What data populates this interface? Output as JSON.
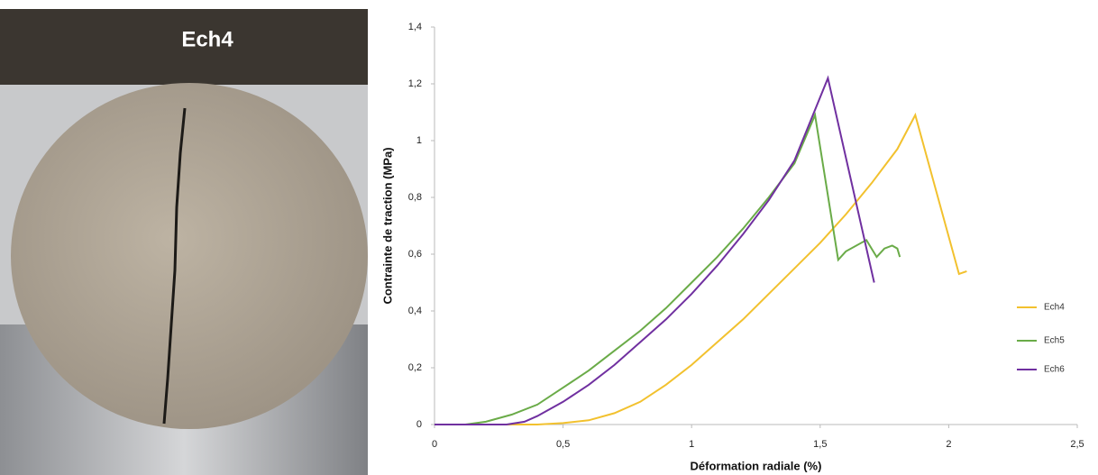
{
  "photo": {
    "label": "Ech4"
  },
  "chart_data": {
    "type": "line",
    "xlabel": "Déformation radiale (%)",
    "ylabel": "Contrainte de traction (MPa)",
    "xlim": [
      0,
      2.5
    ],
    "ylim": [
      0,
      1.4
    ],
    "xticks": [
      0,
      {
        "value": 0.5,
        "label": "0,5"
      },
      1,
      {
        "value": 1.5,
        "label": "1,5"
      },
      2,
      {
        "value": 2.5,
        "label": "2,5"
      }
    ],
    "yticks": [
      0,
      {
        "value": 0.2,
        "label": "0,2"
      },
      {
        "value": 0.4,
        "label": "0,4"
      },
      {
        "value": 0.6,
        "label": "0,6"
      },
      {
        "value": 0.8,
        "label": "0,8"
      },
      1,
      {
        "value": 1.2,
        "label": "1,2"
      },
      {
        "value": 1.4,
        "label": "1,4"
      }
    ],
    "grid": false,
    "legend": "right",
    "series": [
      {
        "name": "Ech4",
        "color": "#f2c12e",
        "x": [
          0,
          0.4,
          0.5,
          0.6,
          0.7,
          0.8,
          0.9,
          1.0,
          1.1,
          1.2,
          1.3,
          1.4,
          1.5,
          1.6,
          1.7,
          1.8,
          1.87,
          2.04,
          2.07
        ],
        "values": [
          0,
          0,
          0.005,
          0.015,
          0.04,
          0.08,
          0.14,
          0.21,
          0.29,
          0.37,
          0.46,
          0.55,
          0.64,
          0.74,
          0.85,
          0.97,
          1.09,
          0.53,
          0.54
        ]
      },
      {
        "name": "Ech5",
        "color": "#6aab48",
        "x": [
          0,
          0.12,
          0.2,
          0.3,
          0.4,
          0.5,
          0.6,
          0.7,
          0.8,
          0.9,
          1.0,
          1.1,
          1.2,
          1.3,
          1.4,
          1.48,
          1.57,
          1.6,
          1.68,
          1.72,
          1.75,
          1.78,
          1.8,
          1.81
        ],
        "values": [
          0,
          0,
          0.01,
          0.035,
          0.07,
          0.13,
          0.19,
          0.26,
          0.33,
          0.41,
          0.5,
          0.59,
          0.69,
          0.8,
          0.92,
          1.09,
          0.58,
          0.61,
          0.65,
          0.59,
          0.62,
          0.63,
          0.62,
          0.59
        ]
      },
      {
        "name": "Ech6",
        "color": "#7030a0",
        "x": [
          0,
          0.28,
          0.35,
          0.4,
          0.5,
          0.6,
          0.7,
          0.8,
          0.9,
          1.0,
          1.1,
          1.2,
          1.3,
          1.4,
          1.53,
          1.71
        ],
        "values": [
          0,
          0,
          0.01,
          0.03,
          0.08,
          0.14,
          0.21,
          0.29,
          0.37,
          0.46,
          0.56,
          0.67,
          0.79,
          0.93,
          1.22,
          0.5
        ]
      }
    ]
  }
}
